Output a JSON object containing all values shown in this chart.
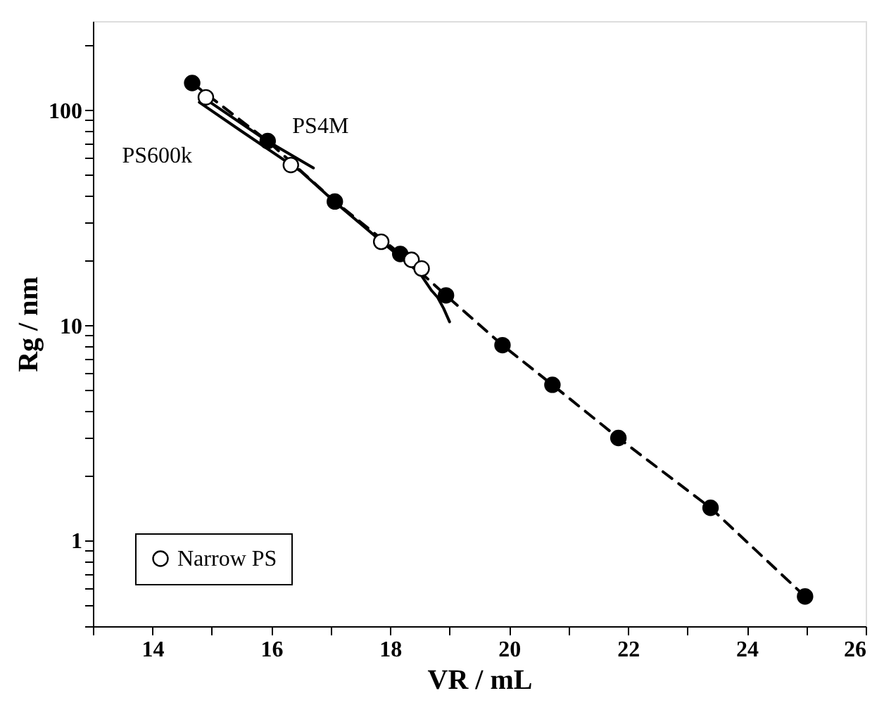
{
  "chart_data": {
    "type": "line",
    "xlabel": "VR / mL",
    "ylabel": "Rg / nm",
    "log": "y",
    "grid": false,
    "legend": "bottom left",
    "xlim": [
      13,
      26
    ],
    "xticks": [
      {
        "value": 13,
        "label": null
      },
      14,
      {
        "value": 15,
        "label": null
      },
      16,
      {
        "value": 17,
        "label": null
      },
      18,
      {
        "value": 19,
        "label": null
      },
      20,
      {
        "value": 21,
        "label": null
      },
      22,
      {
        "value": 23,
        "label": null
      },
      24,
      {
        "value": 25,
        "label": null
      },
      26
    ],
    "ylim": [
      0.4,
      260
    ],
    "yticks": [
      {
        "value": 0.4,
        "label": null
      },
      {
        "value": 0.5,
        "label": null
      },
      {
        "value": 0.6,
        "label": null
      },
      {
        "value": 0.7,
        "label": null
      },
      {
        "value": 0.8,
        "label": null
      },
      {
        "value": 0.9,
        "label": null
      },
      1,
      {
        "value": 2,
        "label": null
      },
      {
        "value": 3,
        "label": null
      },
      {
        "value": 4,
        "label": null
      },
      {
        "value": 5,
        "label": null
      },
      {
        "value": 6,
        "label": null
      },
      {
        "value": 7,
        "label": null
      },
      {
        "value": 8,
        "label": null
      },
      {
        "value": 9,
        "label": null
      },
      10,
      {
        "value": 20,
        "label": null
      },
      {
        "value": 30,
        "label": null
      },
      {
        "value": 40,
        "label": null
      },
      {
        "value": 50,
        "label": null
      },
      {
        "value": 60,
        "label": null
      },
      {
        "value": 70,
        "label": null
      },
      {
        "value": 80,
        "label": null
      },
      {
        "value": 90,
        "label": null
      },
      100,
      {
        "value": 200,
        "label": null
      }
    ],
    "series": [
      {
        "color": "#000000",
        "marker": "circle",
        "line_style": "dashed",
        "x": [
          14.67,
          15.94,
          17.07,
          18.17,
          18.94,
          19.89,
          20.73,
          21.84,
          23.39,
          24.98
        ],
        "values": [
          134,
          72,
          37.7,
          21.5,
          13.8,
          8.1,
          5.3,
          3.0,
          1.42,
          0.55
        ]
      },
      {
        "name": "PS4M",
        "color": "#000000",
        "marker": "none",
        "line_style": "solid",
        "x": [
          14.83,
          15.9,
          16.71
        ],
        "values": [
          116,
          73,
          54
        ]
      },
      {
        "name": "PS600k",
        "color": "#000000",
        "marker": "none",
        "line_style": "solid",
        "x": [
          14.79,
          15.5,
          16.5,
          17.07,
          17.9,
          18.5,
          18.7,
          18.8,
          18.9,
          19.0
        ],
        "values": [
          109,
          80,
          52,
          37.5,
          24,
          17.5,
          14.5,
          13.5,
          12,
          10.4
        ]
      },
      {
        "type": "scatter",
        "name": "Narrow PS",
        "color": "#ffffff",
        "marker": "circle",
        "x": [
          14.9,
          16.33,
          17.85,
          18.36,
          18.53
        ],
        "values": [
          115,
          55.7,
          24.5,
          20.2,
          18.4
        ]
      }
    ]
  }
}
